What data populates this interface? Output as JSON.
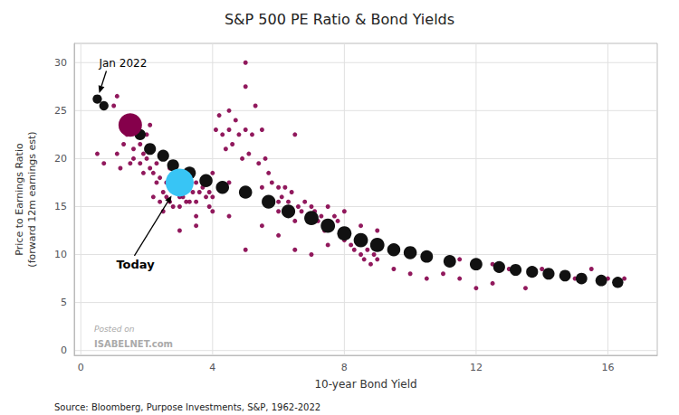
{
  "chart_data": {
    "type": "scatter",
    "title": "S&P 500 PE Ratio & Bond Yields",
    "xlabel": "10-year Bond Yield",
    "ylabel": "Price to Earnings Ratio\n(forward 12m earnings est)",
    "source": "Source: Bloomberg, Purpose Investments, S&P, 1962-2022",
    "xlim": [
      -0.2,
      17.5
    ],
    "ylim": [
      -0.5,
      32
    ],
    "xticks": [
      0,
      4,
      8,
      12,
      16
    ],
    "yticks": [
      0,
      5,
      10,
      15,
      20,
      25,
      30
    ],
    "grid": true,
    "series": [
      {
        "color": "#85004B",
        "marker": "circle",
        "x": [
          0.5,
          0.7,
          1.0,
          1.1,
          1.1,
          1.2,
          1.3,
          1.4,
          1.5,
          1.6,
          1.6,
          1.7,
          1.8,
          1.8,
          1.9,
          1.9,
          2.0,
          2.0,
          2.1,
          2.1,
          2.2,
          2.2,
          2.3,
          2.3,
          2.4,
          2.4,
          2.5,
          2.5,
          2.6,
          2.6,
          2.7,
          2.7,
          2.8,
          2.8,
          2.9,
          2.9,
          3.0,
          3.0,
          3.0,
          3.1,
          3.1,
          3.2,
          3.2,
          3.3,
          3.3,
          3.4,
          3.5,
          3.5,
          3.5,
          3.6,
          3.7,
          3.8,
          3.9,
          3.9,
          4.0,
          4.0,
          4.1,
          4.2,
          4.3,
          4.4,
          4.5,
          4.5,
          4.6,
          4.7,
          4.8,
          4.9,
          5.0,
          5.0,
          5.0,
          5.1,
          5.2,
          5.3,
          5.4,
          5.5,
          5.6,
          5.7,
          5.8,
          6.0,
          6.0,
          6.1,
          6.2,
          6.3,
          6.4,
          6.5,
          6.6,
          6.7,
          6.8,
          7.0,
          7.0,
          7.1,
          7.2,
          7.3,
          7.4,
          7.5,
          7.6,
          7.7,
          7.8,
          7.9,
          8.0,
          8.1,
          8.2,
          8.3,
          8.4,
          8.5,
          8.6,
          8.7,
          8.8,
          8.9,
          9.0,
          9.5,
          10.0,
          10.5,
          11.0,
          11.5,
          12.0,
          12.5,
          7.0,
          6.5,
          6.0,
          5.5,
          5.0,
          4.5,
          4.0,
          3.5,
          3.0,
          4.5,
          5.5,
          6.0,
          6.5,
          7.5,
          8.0,
          8.5,
          9.0,
          11.5,
          12.5,
          13.0,
          14.0,
          15.0,
          15.5,
          16.0,
          16.5,
          13.5
        ],
        "values": [
          20.5,
          19.5,
          25.5,
          26.5,
          20.5,
          19.0,
          21.5,
          22.5,
          19.5,
          21.0,
          20.0,
          23.0,
          21.5,
          19.5,
          20.5,
          18.5,
          22.5,
          20.0,
          19.0,
          23.5,
          18.5,
          16.0,
          19.5,
          17.5,
          18.0,
          15.5,
          16.5,
          14.5,
          17.5,
          16.0,
          19.0,
          15.5,
          17.0,
          15.0,
          18.0,
          16.5,
          18.5,
          16.0,
          15.0,
          17.5,
          16.0,
          18.0,
          15.5,
          17.0,
          15.5,
          16.5,
          17.5,
          15.5,
          14.0,
          16.5,
          17.0,
          16.0,
          16.5,
          15.0,
          18.5,
          16.0,
          23.0,
          24.5,
          22.5,
          21.0,
          25.0,
          23.0,
          21.5,
          24.0,
          22.5,
          20.0,
          30.0,
          27.5,
          23.0,
          20.5,
          22.5,
          25.5,
          19.5,
          23.0,
          20.0,
          18.5,
          17.5,
          17.0,
          15.5,
          16.0,
          17.0,
          15.5,
          16.5,
          22.5,
          15.0,
          14.5,
          15.5,
          15.0,
          13.5,
          14.5,
          13.5,
          14.0,
          12.5,
          15.0,
          13.0,
          14.0,
          13.5,
          12.5,
          11.5,
          12.0,
          11.0,
          10.5,
          11.5,
          10.0,
          9.5,
          10.5,
          9.0,
          10.0,
          9.5,
          8.5,
          8.0,
          7.5,
          8.0,
          7.5,
          6.5,
          7.0,
          10.0,
          10.5,
          12.0,
          13.0,
          10.5,
          14.0,
          14.5,
          13.0,
          12.5,
          17.5,
          17.0,
          14.5,
          13.5,
          11.0,
          14.5,
          13.0,
          12.5,
          9.5,
          9.0,
          8.5,
          8.5,
          7.5,
          8.5,
          7.5,
          7.5,
          6.5
        ]
      },
      {
        "color": "#111111",
        "marker": "circle",
        "x": [
          0.5,
          0.7,
          1.5,
          1.8,
          2.1,
          2.5,
          2.8,
          3.3,
          3.8,
          4.3,
          5.0,
          5.7,
          6.3,
          7.0,
          7.5,
          8.0,
          8.5,
          9.0,
          9.5,
          10.0,
          10.5,
          11.2,
          12.0,
          12.7,
          13.2,
          13.7,
          14.2,
          14.7,
          15.2,
          15.8,
          16.3
        ],
        "values": [
          26.2,
          25.5,
          23.5,
          22.5,
          21.0,
          20.3,
          19.3,
          18.5,
          17.7,
          17.0,
          16.5,
          15.5,
          14.5,
          13.8,
          13.0,
          12.2,
          11.5,
          11.0,
          10.5,
          10.2,
          9.8,
          9.3,
          9.0,
          8.7,
          8.4,
          8.2,
          8.0,
          7.8,
          7.5,
          7.3,
          7.1
        ],
        "sizes": [
          55,
          55,
          140,
          80,
          90,
          90,
          90,
          100,
          110,
          110,
          110,
          120,
          120,
          130,
          130,
          130,
          130,
          130,
          110,
          110,
          100,
          100,
          100,
          90,
          90,
          90,
          90,
          85,
          85,
          85,
          80
        ]
      },
      {
        "color": "#85004B",
        "marker": "circle",
        "x": [
          1.5
        ],
        "values": [
          23.5
        ]
      },
      {
        "color": "#38C5F5",
        "marker": "circle",
        "x": [
          3.0
        ],
        "values": [
          17.5
        ]
      }
    ],
    "annotations": [
      {
        "text": "Jan 2022",
        "x": 0.5,
        "y": 26.2
      },
      {
        "text": "Today",
        "x": 3.0,
        "y": 17.5
      },
      {
        "text": "Posted on"
      },
      {
        "text": "ISABELNET.com"
      }
    ]
  }
}
